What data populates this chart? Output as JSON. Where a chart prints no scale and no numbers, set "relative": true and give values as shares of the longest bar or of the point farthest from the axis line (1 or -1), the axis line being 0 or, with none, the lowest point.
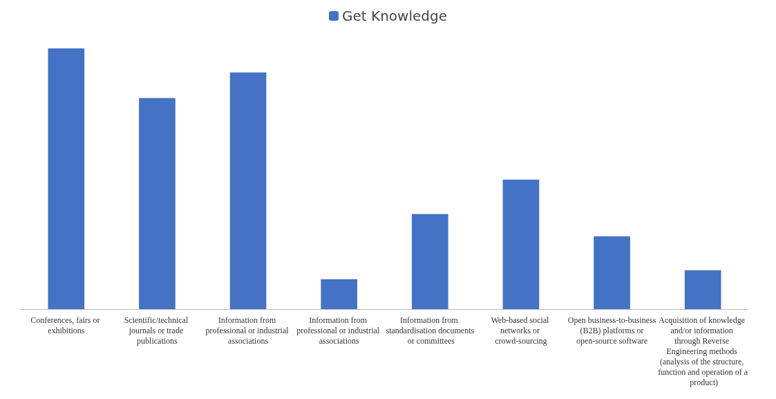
{
  "chart_data": {
    "type": "bar",
    "relative": true,
    "legend": "top",
    "categories": [
      "Conferences, fairs or exhibitions",
      "Scientific/technical journals or trade publications",
      "Information from professional or industrial associations",
      "Information from professional or industrial associations",
      "Information from standardisation documents or committees",
      "Web-based social networks or crowd-sourcing",
      "Open business-to-business (B2B) platforms or open-source software",
      "Acquisition of knowledge and/or information through Reverse Engineering methods (analysis of the structure, function and operation of a product)"
    ],
    "series": [
      {
        "name": "Get Knowledge",
        "color": "#4472c4",
        "values": [
          1,
          0.81,
          0.908,
          0.115,
          0.365,
          0.497,
          0.279,
          0.149
        ]
      }
    ]
  }
}
